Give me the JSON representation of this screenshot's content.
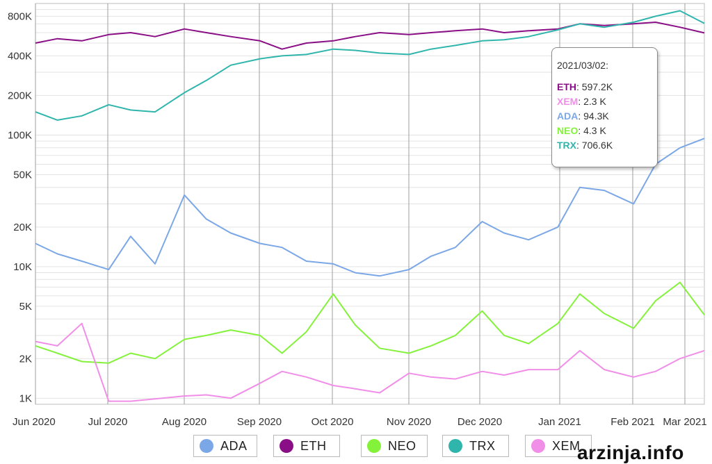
{
  "chart_data": {
    "type": "line",
    "y_scale": "log",
    "ylim": [
      900,
      1000000
    ],
    "y_ticks": [
      {
        "value": 1000,
        "label": "1K"
      },
      {
        "value": 2000,
        "label": "2K"
      },
      {
        "value": 5000,
        "label": "5K"
      },
      {
        "value": 10000,
        "label": "10K"
      },
      {
        "value": 20000,
        "label": "20K"
      },
      {
        "value": 50000,
        "label": "50K"
      },
      {
        "value": 100000,
        "label": "100K"
      },
      {
        "value": 200000,
        "label": "200K"
      },
      {
        "value": 400000,
        "label": "400K"
      },
      {
        "value": 800000,
        "label": "800K"
      }
    ],
    "x_ticks": [
      "Jun 2020",
      "Jul 2020",
      "Aug 2020",
      "Sep 2020",
      "Oct 2020",
      "Nov 2020",
      "Dec 2020",
      "Jan 2021",
      "Feb 2021",
      "Mar 2021"
    ],
    "grid": true,
    "legend_position": "bottom",
    "x": [
      "2020-06-01",
      "2020-06-10",
      "2020-06-20",
      "2020-07-01",
      "2020-07-10",
      "2020-07-20",
      "2020-08-01",
      "2020-08-10",
      "2020-08-20",
      "2020-09-01",
      "2020-09-10",
      "2020-09-20",
      "2020-10-01",
      "2020-10-10",
      "2020-10-20",
      "2020-11-01",
      "2020-11-10",
      "2020-11-20",
      "2020-12-01",
      "2020-12-10",
      "2020-12-20",
      "2021-01-01",
      "2021-01-10",
      "2021-01-20",
      "2021-02-01",
      "2021-02-10",
      "2021-02-20",
      "2021-03-02"
    ],
    "series": [
      {
        "name": "ADA",
        "color": "#7ba7e6",
        "values": [
          15000,
          12500,
          11000,
          9500,
          17000,
          10500,
          35000,
          23000,
          18000,
          15000,
          14000,
          11000,
          10500,
          9000,
          8500,
          9500,
          12000,
          14000,
          22000,
          18000,
          16000,
          20000,
          40000,
          38000,
          30000,
          60000,
          80000,
          94300
        ]
      },
      {
        "name": "ETH",
        "color": "#8a0f86",
        "values": [
          500000,
          540000,
          520000,
          580000,
          600000,
          560000,
          640000,
          600000,
          560000,
          520000,
          450000,
          500000,
          520000,
          560000,
          600000,
          580000,
          600000,
          620000,
          640000,
          600000,
          620000,
          640000,
          700000,
          680000,
          700000,
          720000,
          660000,
          597200
        ]
      },
      {
        "name": "NEO",
        "color": "#84f23a",
        "values": [
          2500,
          2200,
          1900,
          1850,
          2200,
          2000,
          2800,
          3000,
          3300,
          3000,
          2200,
          3200,
          6200,
          3600,
          2400,
          2200,
          2500,
          3000,
          4600,
          3000,
          2600,
          3700,
          6200,
          4400,
          3400,
          5500,
          7600,
          4300
        ]
      },
      {
        "name": "TRX",
        "color": "#2fb5ac",
        "values": [
          150000,
          130000,
          140000,
          170000,
          155000,
          150000,
          210000,
          260000,
          340000,
          380000,
          400000,
          410000,
          450000,
          440000,
          420000,
          410000,
          450000,
          480000,
          520000,
          530000,
          560000,
          630000,
          700000,
          660000,
          720000,
          800000,
          880000,
          706600
        ]
      },
      {
        "name": "XEM",
        "color": "#f08ee8",
        "values": [
          2700,
          2500,
          3700,
          950,
          950,
          990,
          1040,
          1060,
          1000,
          1300,
          1600,
          1450,
          1250,
          1180,
          1100,
          1550,
          1450,
          1400,
          1600,
          1500,
          1650,
          1650,
          2300,
          1650,
          1450,
          1600,
          2000,
          2300
        ]
      }
    ]
  },
  "tooltip": {
    "date": "2021/03/02:",
    "rows": [
      {
        "name": "ETH",
        "value": ": 597.2K",
        "color": "#8a0f86"
      },
      {
        "name": "XEM",
        "value": ": 2.3 K",
        "color": "#f08ee8"
      },
      {
        "name": "ADA",
        "value": ": 94.3K",
        "color": "#7ba7e6"
      },
      {
        "name": "NEO",
        "value": ": 4.3 K",
        "color": "#84f23a"
      },
      {
        "name": "TRX",
        "value": ": 706.6K",
        "color": "#2fb5ac"
      }
    ]
  },
  "legend": [
    {
      "label": "ADA",
      "color": "#7ba7e6"
    },
    {
      "label": "ETH",
      "color": "#8a0f86"
    },
    {
      "label": "NEO",
      "color": "#84f23a"
    },
    {
      "label": "TRX",
      "color": "#2fb5ac"
    },
    {
      "label": "XEM",
      "color": "#f08ee8"
    }
  ],
  "watermark": "arzinja.info"
}
